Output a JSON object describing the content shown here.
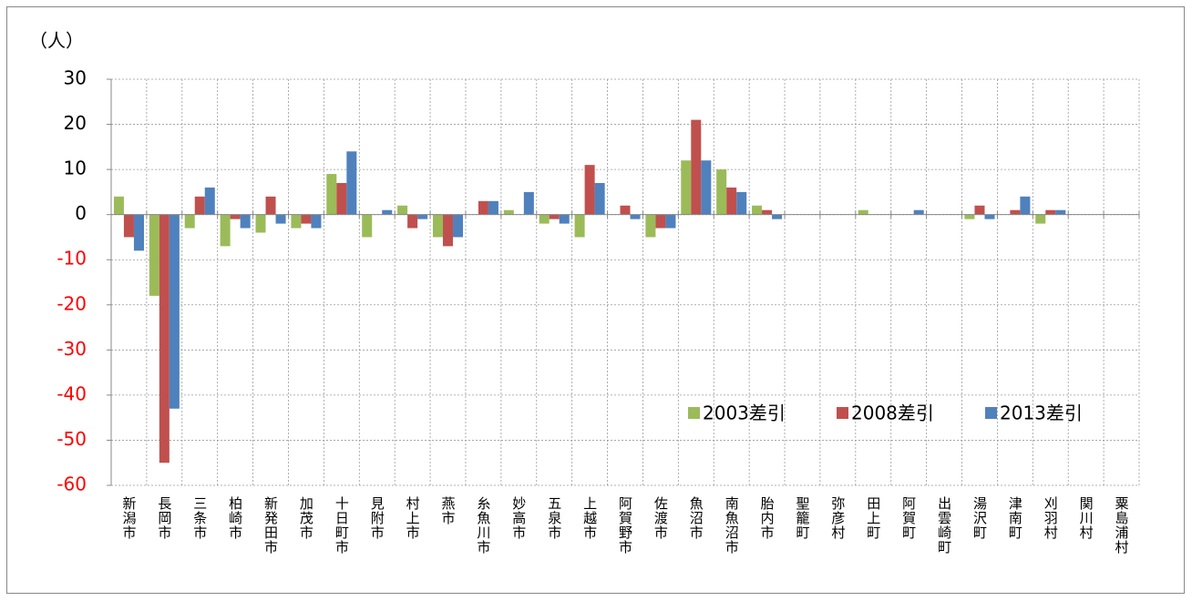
{
  "chart_data": {
    "type": "bar",
    "unit_label": "（人）",
    "categories": [
      "新潟市",
      "長岡市",
      "三条市",
      "柏崎市",
      "新発田市",
      "加茂市",
      "十日町市",
      "見附市",
      "村上市",
      "燕市",
      "糸魚川市",
      "妙高市",
      "五泉市",
      "上越市",
      "阿賀野市",
      "佐渡市",
      "魚沼市",
      "南魚沼市",
      "胎内市",
      "聖籠町",
      "弥彦村",
      "田上町",
      "阿賀町",
      "出雲崎町",
      "湯沢町",
      "津南町",
      "刈羽村",
      "関川村",
      "粟島浦村"
    ],
    "series": [
      {
        "name": "2003差引",
        "color": "#9bbb59",
        "values": [
          4,
          -18,
          -3,
          -7,
          -4,
          -3,
          9,
          -5,
          2,
          -5,
          0,
          1,
          -2,
          -5,
          0,
          -5,
          12,
          10,
          2,
          0,
          0,
          1,
          0,
          0,
          -1,
          0,
          -2,
          0,
          0
        ]
      },
      {
        "name": "2008差引",
        "color": "#c0504d",
        "values": [
          -5,
          -55,
          4,
          -1,
          4,
          -2,
          7,
          0,
          -3,
          -7,
          3,
          0,
          -1,
          11,
          2,
          -3,
          21,
          6,
          1,
          0,
          0,
          0,
          0,
          0,
          2,
          1,
          1,
          0,
          0
        ]
      },
      {
        "name": "2013差引",
        "color": "#4f81bd",
        "values": [
          -8,
          -43,
          6,
          -3,
          -2,
          -3,
          14,
          1,
          -1,
          -5,
          3,
          5,
          -2,
          7,
          -1,
          -3,
          12,
          5,
          -1,
          0,
          0,
          0,
          1,
          0,
          -1,
          4,
          1,
          0,
          0
        ]
      }
    ],
    "ylim": [
      -60,
      30
    ],
    "yticks": [
      -60,
      -50,
      -40,
      -30,
      -20,
      -10,
      0,
      10,
      20,
      30
    ],
    "grid": true,
    "negative_tick_color": "#ff0000",
    "legend_position": "lower right"
  }
}
